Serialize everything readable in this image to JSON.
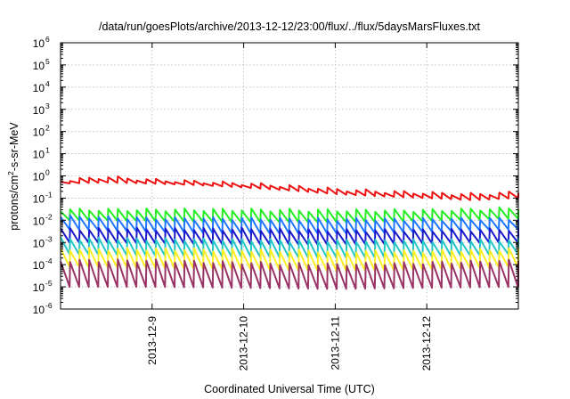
{
  "chart_data": {
    "type": "line",
    "title": "/data/run/goesPlots/archive/2013-12-12/23:00/flux/../flux/5daysMarsFluxes.txt",
    "xlabel": "Coordinated Universal Time (UTC)",
    "ylabel": "protons/cm²-s-sr-MeV",
    "ylabel_parts": {
      "base": "protons/cm",
      "exp": "2",
      "rest": "-s-sr-MeV"
    },
    "yscale": "log",
    "ylim": [
      1e-06,
      1000000.0
    ],
    "xlim": [
      "2013-12-08 00:00",
      "2013-12-13 00:00"
    ],
    "y_ticks": [
      {
        "base": "10",
        "exp": "-6"
      },
      {
        "base": "10",
        "exp": "-5"
      },
      {
        "base": "10",
        "exp": "-4"
      },
      {
        "base": "10",
        "exp": "-3"
      },
      {
        "base": "10",
        "exp": "-2"
      },
      {
        "base": "10",
        "exp": "-1"
      },
      {
        "base": "10",
        "exp": "0"
      },
      {
        "base": "10",
        "exp": "1"
      },
      {
        "base": "10",
        "exp": "2"
      },
      {
        "base": "10",
        "exp": "3"
      },
      {
        "base": "10",
        "exp": "4"
      },
      {
        "base": "10",
        "exp": "5"
      },
      {
        "base": "10",
        "exp": "6"
      }
    ],
    "x_ticks": [
      "2013-12-9",
      "2013-12-10",
      "2013-12-11",
      "2013-12-12"
    ],
    "grid": true,
    "sawtooth_period_hours": 2.5,
    "series": [
      {
        "color": "#ee1111",
        "x": [
          "2013-12-08 00:00",
          "2013-12-08 12:00",
          "2013-12-09 00:00",
          "2013-12-09 12:00",
          "2013-12-10 00:00",
          "2013-12-10 12:00",
          "2013-12-11 00:00",
          "2013-12-11 12:00",
          "2013-12-12 00:00",
          "2013-12-12 12:00",
          "2013-12-13 00:00"
        ],
        "peak": [
          0.6,
          0.9,
          0.65,
          0.55,
          0.45,
          0.35,
          0.25,
          0.2,
          0.17,
          0.15,
          0.18
        ],
        "trough": [
          0.45,
          0.5,
          0.45,
          0.38,
          0.3,
          0.22,
          0.15,
          0.12,
          0.1,
          0.08,
          0.1
        ]
      },
      {
        "color": "#22ee22",
        "x": [
          "2013-12-08 00:00",
          "2013-12-09 00:00",
          "2013-12-10 00:00",
          "2013-12-11 00:00",
          "2013-12-12 00:00",
          "2013-12-13 00:00"
        ],
        "peak": [
          0.03,
          0.03,
          0.03,
          0.028,
          0.028,
          0.035
        ],
        "trough": [
          0.01,
          0.009,
          0.008,
          0.008,
          0.009,
          0.012
        ]
      },
      {
        "color": "#1f77ff",
        "x": [
          "2013-12-08 00:00",
          "2013-12-09 00:00",
          "2013-12-10 00:00",
          "2013-12-11 00:00",
          "2013-12-12 00:00",
          "2013-12-13 00:00"
        ],
        "peak": [
          0.015,
          0.012,
          0.012,
          0.011,
          0.011,
          0.012
        ],
        "trough": [
          0.004,
          0.003,
          0.0025,
          0.0025,
          0.003,
          0.004
        ]
      },
      {
        "color": "#1a1acc",
        "x": [
          "2013-12-08 00:00",
          "2013-12-09 00:00",
          "2013-12-10 00:00",
          "2013-12-11 00:00",
          "2013-12-12 00:00",
          "2013-12-13 00:00"
        ],
        "peak": [
          0.004,
          0.004,
          0.004,
          0.0035,
          0.0035,
          0.004
        ],
        "trough": [
          0.001,
          0.0009,
          0.0008,
          0.0008,
          0.0009,
          0.001
        ]
      },
      {
        "color": "#22c6c6",
        "x": [
          "2013-12-08 00:00",
          "2013-12-09 00:00",
          "2013-12-10 00:00",
          "2013-12-11 00:00",
          "2013-12-12 00:00",
          "2013-12-13 00:00"
        ],
        "peak": [
          0.0015,
          0.0014,
          0.0013,
          0.0012,
          0.0012,
          0.0013
        ],
        "trough": [
          0.0003,
          0.00025,
          0.00022,
          0.0002,
          0.00022,
          0.0003
        ]
      },
      {
        "color": "#ffee22",
        "x": [
          "2013-12-08 00:00",
          "2013-12-09 00:00",
          "2013-12-10 00:00",
          "2013-12-11 00:00",
          "2013-12-12 00:00",
          "2013-12-13 00:00"
        ],
        "peak": [
          0.0005,
          0.0005,
          0.00045,
          0.0004,
          0.0004,
          0.0005
        ],
        "trough": [
          8e-05,
          7e-05,
          6e-05,
          5e-05,
          6e-05,
          8e-05
        ]
      },
      {
        "color": "#993366",
        "x": [
          "2013-12-08 00:00",
          "2013-12-09 00:00",
          "2013-12-10 00:00",
          "2013-12-11 00:00",
          "2013-12-12 00:00",
          "2013-12-13 00:00"
        ],
        "peak": [
          0.00015,
          0.00015,
          0.00012,
          0.0001,
          0.00012,
          0.00015
        ],
        "trough": [
          1e-05,
          1e-05,
          9e-06,
          8e-06,
          9e-06,
          1e-05
        ]
      }
    ]
  }
}
